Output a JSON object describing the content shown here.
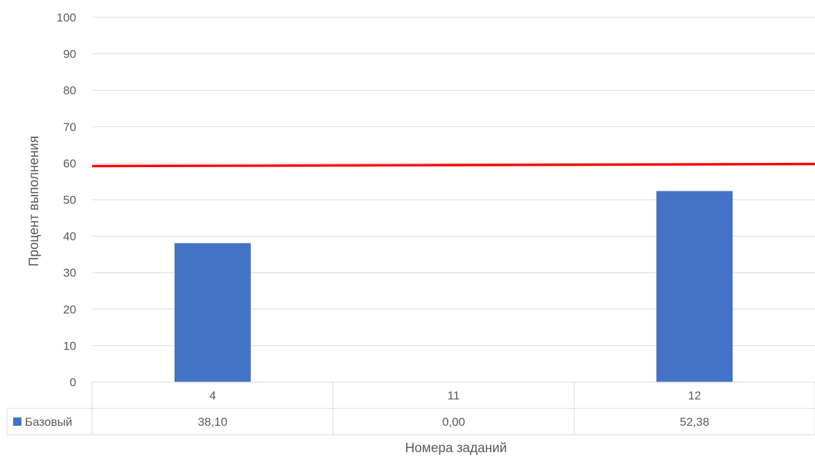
{
  "chart_data": {
    "type": "bar",
    "categories": [
      "4",
      "11",
      "12"
    ],
    "series": [
      {
        "name": "Базовый",
        "values": [
          38.1,
          0.0,
          52.38
        ],
        "table_labels": [
          "38,10",
          "0,00",
          "52,38"
        ],
        "color": "#4472C4"
      }
    ],
    "reference_line": {
      "value": 59.5,
      "color": "#FF0000"
    },
    "xlabel": "Номера заданий",
    "ylabel": "Процент выполнения",
    "ylim": [
      0,
      100
    ],
    "yticks": [
      0,
      10,
      20,
      30,
      40,
      50,
      60,
      70,
      80,
      90,
      100
    ],
    "grid": true,
    "data_table": true
  }
}
